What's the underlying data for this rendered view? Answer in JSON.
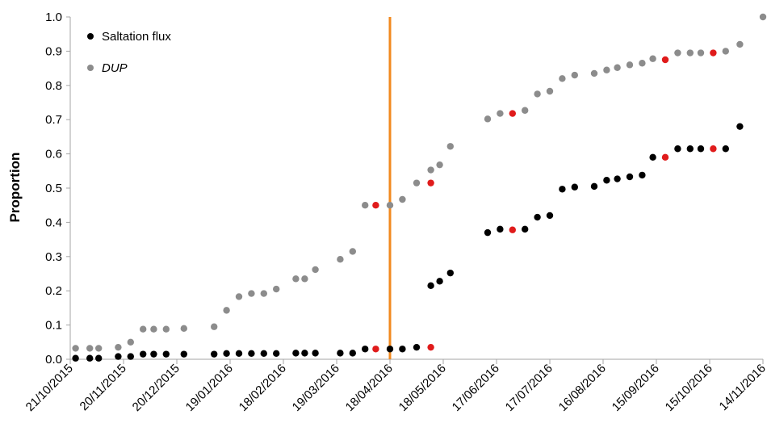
{
  "chart_data": {
    "type": "scatter",
    "ylabel": "Proportion",
    "xlabel": "",
    "ylim": [
      0,
      1.0
    ],
    "yticks": [
      "0.0",
      "0.1",
      "0.2",
      "0.3",
      "0.4",
      "0.5",
      "0.6",
      "0.7",
      "0.8",
      "0.9",
      "1.0"
    ],
    "xlim": [
      "2015-10-21",
      "2016-11-14"
    ],
    "xticks": [
      "21/10/2015",
      "20/11/2015",
      "20/12/2015",
      "19/01/2016",
      "18/02/2016",
      "19/03/2016",
      "18/04/2016",
      "18/05/2016",
      "17/06/2016",
      "17/07/2016",
      "16/08/2016",
      "15/09/2016",
      "15/10/2016",
      "14/11/2016"
    ],
    "grid": false,
    "legend_position": "top-left",
    "vline": {
      "x": "2016-04-18",
      "color": "#f28a1f"
    },
    "highlight_color": "#e01b1b",
    "series": [
      {
        "name": "Saltation flux",
        "color": "#000000",
        "points": [
          {
            "x": "2015-10-24",
            "y": 0.003
          },
          {
            "x": "2015-11-01",
            "y": 0.003
          },
          {
            "x": "2015-11-06",
            "y": 0.003
          },
          {
            "x": "2015-11-17",
            "y": 0.008
          },
          {
            "x": "2015-11-24",
            "y": 0.008
          },
          {
            "x": "2015-12-01",
            "y": 0.015
          },
          {
            "x": "2015-12-07",
            "y": 0.015
          },
          {
            "x": "2015-12-14",
            "y": 0.015
          },
          {
            "x": "2015-12-24",
            "y": 0.015
          },
          {
            "x": "2016-01-10",
            "y": 0.015
          },
          {
            "x": "2016-01-17",
            "y": 0.017
          },
          {
            "x": "2016-01-24",
            "y": 0.017
          },
          {
            "x": "2016-01-31",
            "y": 0.017
          },
          {
            "x": "2016-02-07",
            "y": 0.017
          },
          {
            "x": "2016-02-14",
            "y": 0.017
          },
          {
            "x": "2016-02-25",
            "y": 0.018
          },
          {
            "x": "2016-03-01",
            "y": 0.018
          },
          {
            "x": "2016-03-07",
            "y": 0.018
          },
          {
            "x": "2016-03-21",
            "y": 0.018
          },
          {
            "x": "2016-03-28",
            "y": 0.018
          },
          {
            "x": "2016-04-04",
            "y": 0.03
          },
          {
            "x": "2016-04-10",
            "y": 0.03,
            "highlight": true
          },
          {
            "x": "2016-04-18",
            "y": 0.03
          },
          {
            "x": "2016-04-25",
            "y": 0.03
          },
          {
            "x": "2016-05-03",
            "y": 0.035
          },
          {
            "x": "2016-05-11",
            "y": 0.035,
            "highlight": true
          },
          {
            "x": "2016-05-11",
            "y": 0.215
          },
          {
            "x": "2016-05-16",
            "y": 0.228
          },
          {
            "x": "2016-05-22",
            "y": 0.252
          },
          {
            "x": "2016-06-12",
            "y": 0.37
          },
          {
            "x": "2016-06-19",
            "y": 0.38
          },
          {
            "x": "2016-06-26",
            "y": 0.378,
            "highlight": true
          },
          {
            "x": "2016-07-03",
            "y": 0.38
          },
          {
            "x": "2016-07-10",
            "y": 0.415
          },
          {
            "x": "2016-07-17",
            "y": 0.42
          },
          {
            "x": "2016-07-24",
            "y": 0.497
          },
          {
            "x": "2016-07-31",
            "y": 0.503
          },
          {
            "x": "2016-08-11",
            "y": 0.505
          },
          {
            "x": "2016-08-18",
            "y": 0.523
          },
          {
            "x": "2016-08-24",
            "y": 0.527
          },
          {
            "x": "2016-08-31",
            "y": 0.533
          },
          {
            "x": "2016-09-07",
            "y": 0.538
          },
          {
            "x": "2016-09-13",
            "y": 0.59
          },
          {
            "x": "2016-09-20",
            "y": 0.59,
            "highlight": true
          },
          {
            "x": "2016-09-27",
            "y": 0.615
          },
          {
            "x": "2016-10-04",
            "y": 0.615
          },
          {
            "x": "2016-10-10",
            "y": 0.615
          },
          {
            "x": "2016-10-17",
            "y": 0.615,
            "highlight": true
          },
          {
            "x": "2016-10-24",
            "y": 0.615
          },
          {
            "x": "2016-11-01",
            "y": 0.68
          }
        ]
      },
      {
        "name": "DUP",
        "color": "#8c8c8c",
        "points": [
          {
            "x": "2015-10-24",
            "y": 0.032
          },
          {
            "x": "2015-11-01",
            "y": 0.032
          },
          {
            "x": "2015-11-06",
            "y": 0.032
          },
          {
            "x": "2015-11-17",
            "y": 0.035
          },
          {
            "x": "2015-11-24",
            "y": 0.05
          },
          {
            "x": "2015-12-01",
            "y": 0.088
          },
          {
            "x": "2015-12-07",
            "y": 0.088
          },
          {
            "x": "2015-12-14",
            "y": 0.088
          },
          {
            "x": "2015-12-24",
            "y": 0.09
          },
          {
            "x": "2016-01-10",
            "y": 0.095
          },
          {
            "x": "2016-01-17",
            "y": 0.143
          },
          {
            "x": "2016-01-24",
            "y": 0.183
          },
          {
            "x": "2016-01-31",
            "y": 0.192
          },
          {
            "x": "2016-02-07",
            "y": 0.192
          },
          {
            "x": "2016-02-14",
            "y": 0.205
          },
          {
            "x": "2016-02-25",
            "y": 0.235
          },
          {
            "x": "2016-03-01",
            "y": 0.235
          },
          {
            "x": "2016-03-07",
            "y": 0.262
          },
          {
            "x": "2016-03-21",
            "y": 0.292
          },
          {
            "x": "2016-03-28",
            "y": 0.315
          },
          {
            "x": "2016-04-04",
            "y": 0.45
          },
          {
            "x": "2016-04-10",
            "y": 0.45,
            "highlight": true
          },
          {
            "x": "2016-04-18",
            "y": 0.45
          },
          {
            "x": "2016-04-25",
            "y": 0.467
          },
          {
            "x": "2016-05-03",
            "y": 0.515
          },
          {
            "x": "2016-05-11",
            "y": 0.515,
            "highlight": true
          },
          {
            "x": "2016-05-11",
            "y": 0.553
          },
          {
            "x": "2016-05-16",
            "y": 0.568
          },
          {
            "x": "2016-05-22",
            "y": 0.622
          },
          {
            "x": "2016-06-12",
            "y": 0.702
          },
          {
            "x": "2016-06-19",
            "y": 0.718
          },
          {
            "x": "2016-06-26",
            "y": 0.718,
            "highlight": true
          },
          {
            "x": "2016-07-03",
            "y": 0.727
          },
          {
            "x": "2016-07-10",
            "y": 0.775
          },
          {
            "x": "2016-07-17",
            "y": 0.783
          },
          {
            "x": "2016-07-24",
            "y": 0.82
          },
          {
            "x": "2016-07-31",
            "y": 0.83
          },
          {
            "x": "2016-08-11",
            "y": 0.835
          },
          {
            "x": "2016-08-18",
            "y": 0.845
          },
          {
            "x": "2016-08-24",
            "y": 0.852
          },
          {
            "x": "2016-08-31",
            "y": 0.86
          },
          {
            "x": "2016-09-07",
            "y": 0.865
          },
          {
            "x": "2016-09-13",
            "y": 0.878
          },
          {
            "x": "2016-09-20",
            "y": 0.875,
            "highlight": true
          },
          {
            "x": "2016-09-27",
            "y": 0.895
          },
          {
            "x": "2016-10-04",
            "y": 0.895
          },
          {
            "x": "2016-10-10",
            "y": 0.895
          },
          {
            "x": "2016-10-17",
            "y": 0.895,
            "highlight": true
          },
          {
            "x": "2016-10-24",
            "y": 0.9
          },
          {
            "x": "2016-11-01",
            "y": 0.92
          },
          {
            "x": "2016-11-14",
            "y": 1.0
          }
        ]
      }
    ]
  }
}
